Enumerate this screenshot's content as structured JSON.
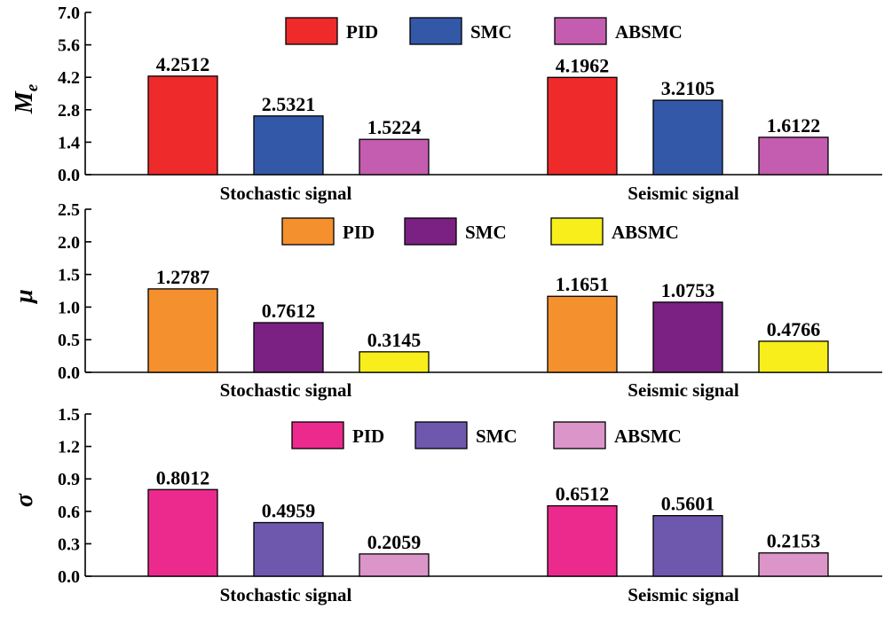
{
  "chart_data": [
    {
      "type": "bar",
      "ylabel": "M_e",
      "ylabel_main": "M",
      "ylabel_sub": "e",
      "ylim": [
        0,
        7.0
      ],
      "yticks": [
        "0.0",
        "1.4",
        "2.8",
        "4.2",
        "5.6",
        "7.0"
      ],
      "categories": [
        "Stochastic signal",
        "Seismic signal"
      ],
      "series": [
        {
          "name": "PID",
          "color": "#ee2a2a",
          "values": [
            4.2512,
            4.1962
          ],
          "labels": [
            "4.2512",
            "4.1962"
          ]
        },
        {
          "name": "SMC",
          "color": "#3358a8",
          "values": [
            2.5321,
            3.2105
          ],
          "labels": [
            "2.5321",
            "3.2105"
          ]
        },
        {
          "name": "ABSMC",
          "color": "#c45caf",
          "values": [
            1.5224,
            1.6122
          ],
          "labels": [
            "1.5224",
            "1.6122"
          ]
        }
      ],
      "legend": "top-center"
    },
    {
      "type": "bar",
      "ylabel": "μ",
      "ylim": [
        0,
        2.5
      ],
      "yticks": [
        "0.0",
        "0.5",
        "1.0",
        "1.5",
        "2.0",
        "2.5"
      ],
      "categories": [
        "Stochastic signal",
        "Seismic signal"
      ],
      "series": [
        {
          "name": "PID",
          "color": "#f5902e",
          "values": [
            1.2787,
            1.1651
          ],
          "labels": [
            "1.2787",
            "1.1651"
          ]
        },
        {
          "name": "SMC",
          "color": "#7b2183",
          "values": [
            0.7612,
            1.0753
          ],
          "labels": [
            "0.7612",
            "1.0753"
          ]
        },
        {
          "name": "ABSMC",
          "color": "#f7ee1c",
          "values": [
            0.3145,
            0.4766
          ],
          "labels": [
            "0.3145",
            "0.4766"
          ]
        }
      ],
      "legend": "top-center"
    },
    {
      "type": "bar",
      "ylabel": "σ",
      "ylim": [
        0,
        1.5
      ],
      "yticks": [
        "0.0",
        "0.3",
        "0.6",
        "0.9",
        "1.2",
        "1.5"
      ],
      "categories": [
        "Stochastic signal",
        "Seismic signal"
      ],
      "series": [
        {
          "name": "PID",
          "color": "#ec2a8e",
          "values": [
            0.8012,
            0.6512
          ],
          "labels": [
            "0.8012",
            "0.6512"
          ]
        },
        {
          "name": "SMC",
          "color": "#6e58ae",
          "values": [
            0.4959,
            0.5601
          ],
          "labels": [
            "0.4959",
            "0.5601"
          ]
        },
        {
          "name": "ABSMC",
          "color": "#dc95c9",
          "values": [
            0.2059,
            0.2153
          ],
          "labels": [
            "0.2059",
            "0.2153"
          ]
        }
      ],
      "legend": "top-center"
    }
  ]
}
